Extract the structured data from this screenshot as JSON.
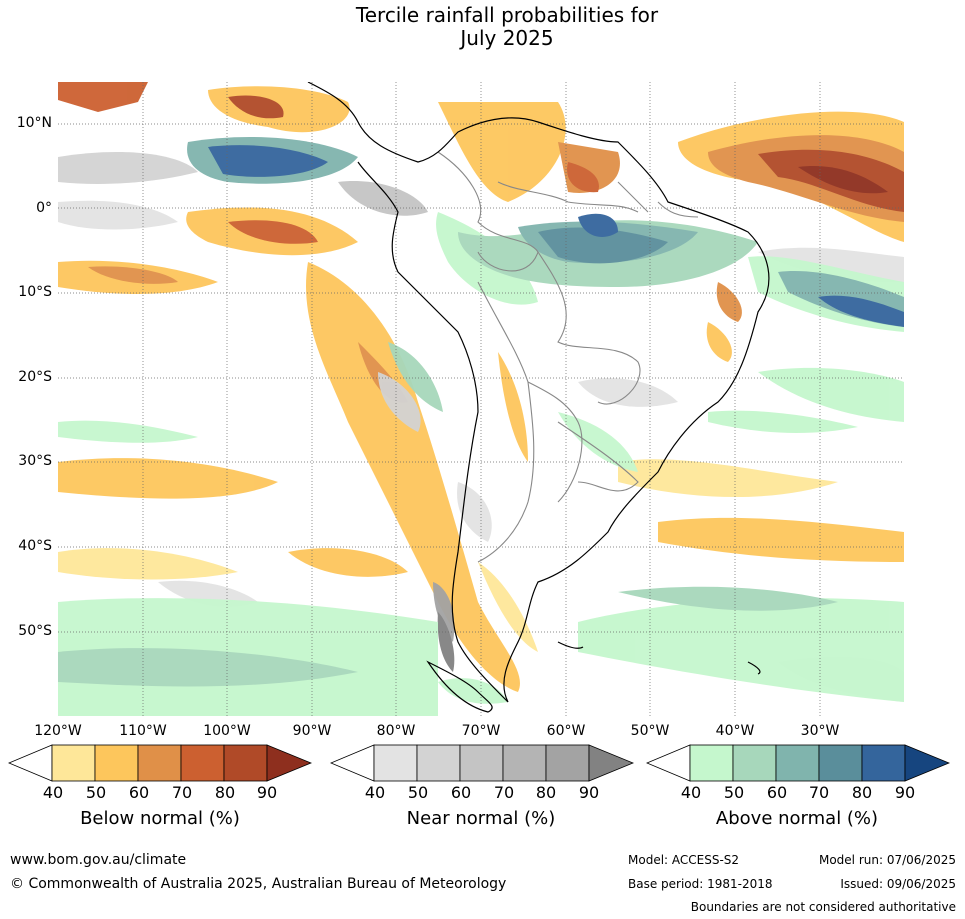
{
  "title_line1": "Tercile rainfall probabilities for",
  "title_line2": "July 2025",
  "lat_labels": [
    "10°N",
    "0°",
    "10°S",
    "20°S",
    "30°S",
    "40°S",
    "50°S"
  ],
  "lon_labels": [
    "120°W",
    "110°W",
    "100°W",
    "90°W",
    "80°W",
    "70°W",
    "60°W",
    "50°W",
    "40°W",
    "30°W"
  ],
  "colorbars": [
    {
      "name": "below",
      "title": "Below normal (%)",
      "ticks": [
        "40",
        "50",
        "60",
        "70",
        "80",
        "90"
      ],
      "colors": [
        "#fee799",
        "#fdc65c",
        "#e09048",
        "#cc6030",
        "#b04a28",
        "#8e2f1e"
      ]
    },
    {
      "name": "near",
      "title": "Near normal (%)",
      "ticks": [
        "40",
        "50",
        "60",
        "70",
        "80",
        "90"
      ],
      "colors": [
        "#e3e3e3",
        "#d3d3d3",
        "#c4c4c4",
        "#b4b4b4",
        "#a3a3a3",
        "#828282"
      ]
    },
    {
      "name": "above",
      "title": "Above normal (%)",
      "ticks": [
        "40",
        "50",
        "60",
        "70",
        "80",
        "90"
      ],
      "colors": [
        "#c5f7cd",
        "#a7d7bb",
        "#80b4ad",
        "#5a8e9b",
        "#34659c",
        "#16457f"
      ]
    }
  ],
  "footer": {
    "url": "www.bom.gov.au/climate",
    "copyright": "© Commonwealth of Australia 2025, Australian Bureau of Meteorology",
    "model": "Model: ACCESS-S2",
    "base_period": "Base period: 1981-2018",
    "model_run": "Model run: 07/06/2025",
    "issued": "Issued: 09/06/2025",
    "disclaimer": "Boundaries are not considered authoritative"
  }
}
